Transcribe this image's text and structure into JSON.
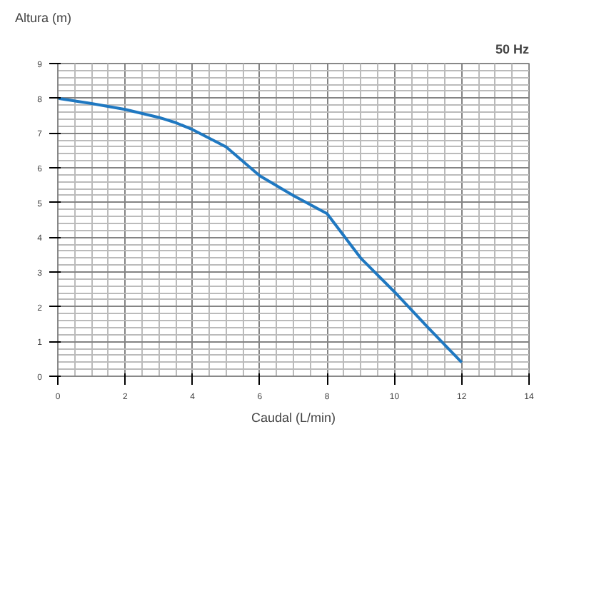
{
  "chart_data": {
    "type": "line",
    "ylabel": "Altura (m)",
    "xlabel": "Caudal (L/min)",
    "annotations": [
      "50 Hz"
    ],
    "xlim": [
      0,
      14
    ],
    "xticks": [
      0,
      2,
      4,
      6,
      8,
      10,
      12,
      14
    ],
    "ylim": [
      0,
      9
    ],
    "yticks": [
      0,
      1,
      2,
      3,
      4,
      5,
      6,
      7,
      8,
      9
    ],
    "grid": true,
    "x": [
      0,
      1,
      2,
      3,
      3.5,
      4,
      5,
      6,
      7,
      8,
      9,
      10,
      11,
      12
    ],
    "series": [
      {
        "color": "#1f78c1",
        "values": [
          8.0,
          7.85,
          7.68,
          7.45,
          7.3,
          7.1,
          6.6,
          5.77,
          5.2,
          4.68,
          3.4,
          2.43,
          1.4,
          0.4
        ]
      }
    ]
  }
}
